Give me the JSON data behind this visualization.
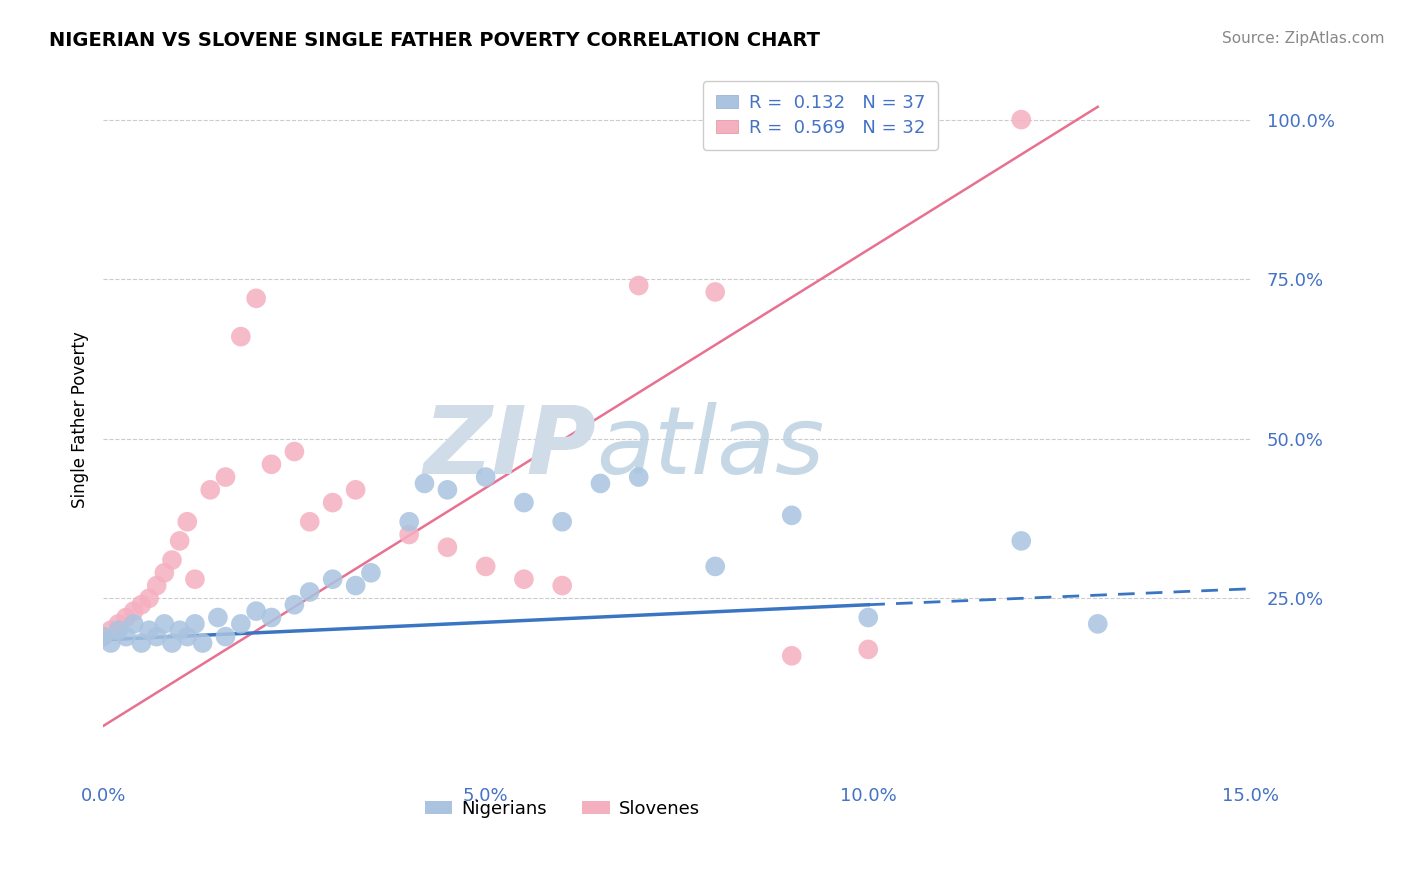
{
  "title": "NIGERIAN VS SLOVENE SINGLE FATHER POVERTY CORRELATION CHART",
  "source": "Source: ZipAtlas.com",
  "ylabel": "Single Father Poverty",
  "xlim": [
    0.0,
    0.15
  ],
  "ylim": [
    -0.02,
    1.08
  ],
  "xtick_labels": [
    "0.0%",
    "5.0%",
    "10.0%",
    "15.0%"
  ],
  "xtick_vals": [
    0.0,
    0.05,
    0.1,
    0.15
  ],
  "ytick_labels": [
    "25.0%",
    "50.0%",
    "75.0%",
    "100.0%"
  ],
  "ytick_vals": [
    0.25,
    0.5,
    0.75,
    1.0
  ],
  "nigerian_color": "#aac4e0",
  "slovene_color": "#f5b0c0",
  "nigerian_line_color": "#3a75c4",
  "slovene_line_color": "#e87090",
  "R_nigerian": 0.132,
  "N_nigerian": 37,
  "R_slovene": 0.569,
  "N_slovene": 32,
  "watermark_zip": "ZIP",
  "watermark_atlas": "atlas",
  "legend_nigerian": "Nigerians",
  "legend_slovene": "Slovenes",
  "grid_color": "#cccccc",
  "nigerian_scatter_x": [
    0.0,
    0.001,
    0.002,
    0.003,
    0.004,
    0.005,
    0.006,
    0.007,
    0.008,
    0.009,
    0.01,
    0.011,
    0.012,
    0.013,
    0.015,
    0.016,
    0.018,
    0.02,
    0.022,
    0.025,
    0.027,
    0.03,
    0.033,
    0.035,
    0.04,
    0.042,
    0.045,
    0.05,
    0.055,
    0.06,
    0.065,
    0.07,
    0.08,
    0.09,
    0.1,
    0.12,
    0.13
  ],
  "nigerian_scatter_y": [
    0.19,
    0.18,
    0.2,
    0.19,
    0.21,
    0.18,
    0.2,
    0.19,
    0.21,
    0.18,
    0.2,
    0.19,
    0.21,
    0.18,
    0.22,
    0.19,
    0.21,
    0.23,
    0.22,
    0.24,
    0.26,
    0.28,
    0.27,
    0.29,
    0.37,
    0.43,
    0.42,
    0.44,
    0.4,
    0.37,
    0.43,
    0.44,
    0.3,
    0.38,
    0.22,
    0.34,
    0.21
  ],
  "slovene_scatter_x": [
    0.0,
    0.001,
    0.002,
    0.003,
    0.004,
    0.005,
    0.006,
    0.007,
    0.008,
    0.009,
    0.01,
    0.011,
    0.012,
    0.014,
    0.016,
    0.018,
    0.02,
    0.022,
    0.025,
    0.027,
    0.03,
    0.033,
    0.04,
    0.045,
    0.05,
    0.055,
    0.06,
    0.07,
    0.08,
    0.09,
    0.1,
    0.12
  ],
  "slovene_scatter_y": [
    0.19,
    0.2,
    0.21,
    0.22,
    0.23,
    0.24,
    0.25,
    0.27,
    0.29,
    0.31,
    0.34,
    0.37,
    0.28,
    0.42,
    0.44,
    0.66,
    0.72,
    0.46,
    0.48,
    0.37,
    0.4,
    0.42,
    0.35,
    0.33,
    0.3,
    0.28,
    0.27,
    0.74,
    0.73,
    0.16,
    0.17,
    1.0
  ]
}
